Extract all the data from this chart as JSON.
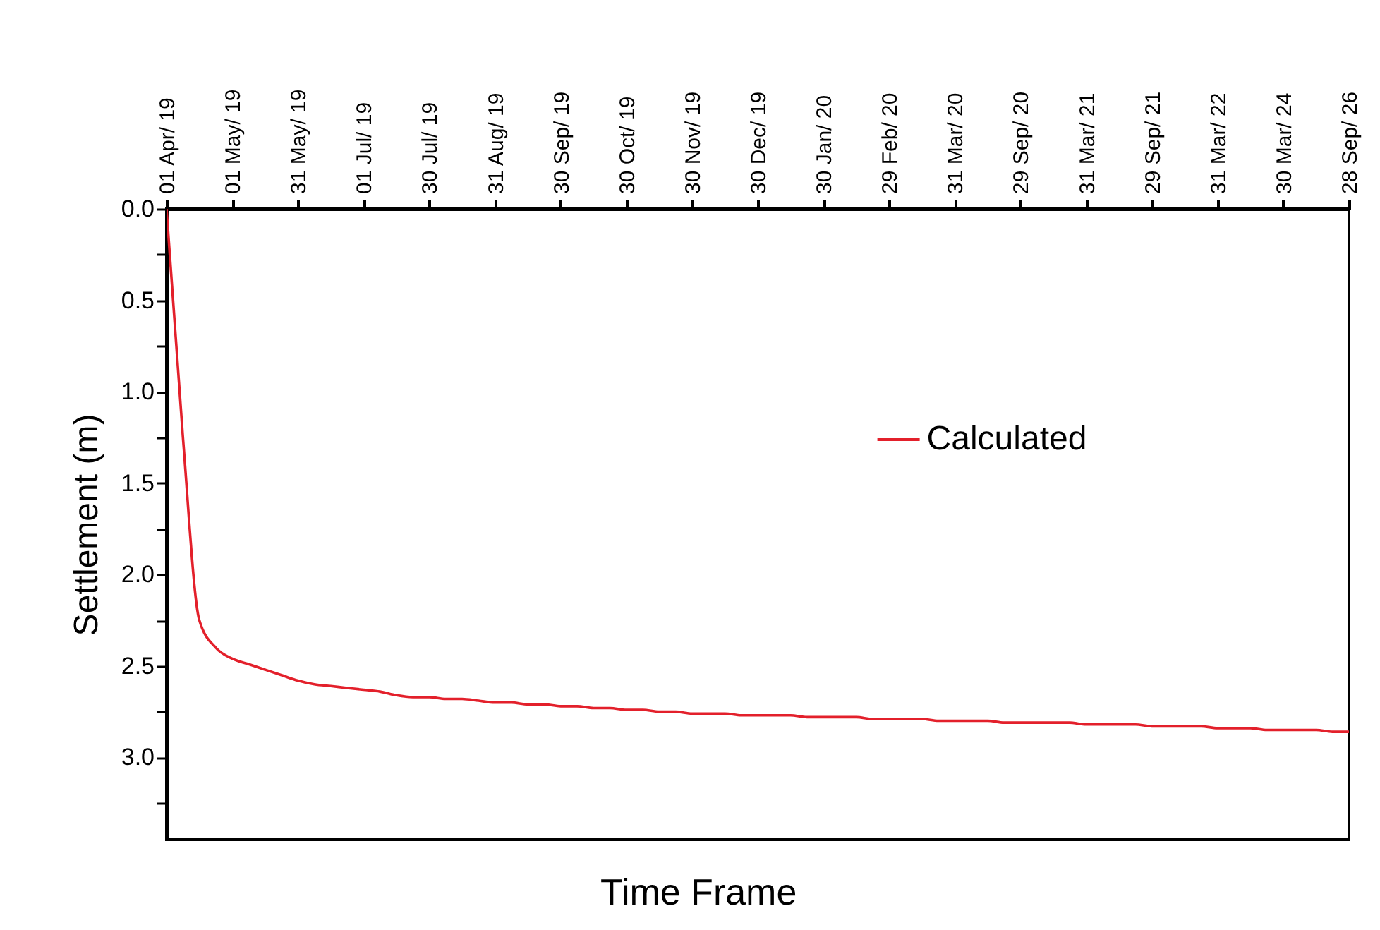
{
  "chart_data": {
    "type": "line",
    "xlabel": "Time Frame",
    "ylabel": "Settlement (m)",
    "categories": [
      "01 Apr/ 19",
      null,
      null,
      null,
      "01 May/ 19",
      null,
      null,
      null,
      "31 May/ 19",
      null,
      null,
      null,
      "01 Jul/ 19",
      null,
      null,
      null,
      "30 Jul/ 19",
      null,
      null,
      null,
      "31 Aug/ 19",
      null,
      null,
      null,
      "30 Sep/ 19",
      null,
      null,
      null,
      "30 Oct/ 19",
      null,
      null,
      null,
      "30 Nov/ 19",
      null,
      null,
      null,
      "30 Dec/ 19",
      null,
      null,
      null,
      "30 Jan/ 20",
      null,
      null,
      null,
      "29 Feb/ 20",
      null,
      null,
      null,
      "31 Mar/ 20",
      null,
      null,
      null,
      "29 Sep/ 20",
      null,
      null,
      null,
      "31 Mar/ 21",
      null,
      null,
      null,
      "29 Sep/ 21",
      null,
      null,
      null,
      "31 Mar/ 22",
      null,
      null,
      null,
      "30 Mar/ 24",
      null,
      null,
      null,
      "28 Sep/ 26"
    ],
    "series": [
      {
        "name": "Calculated",
        "color": "#e3202b",
        "values": [
          0,
          1.25,
          2.25,
          2.4,
          2.46,
          2.49,
          2.52,
          2.55,
          2.58,
          2.6,
          2.61,
          2.62,
          2.63,
          2.64,
          2.66,
          2.67,
          2.67,
          2.68,
          2.68,
          2.69,
          2.7,
          2.7,
          2.71,
          2.71,
          2.72,
          2.72,
          2.73,
          2.73,
          2.74,
          2.74,
          2.75,
          2.75,
          2.76,
          2.76,
          2.76,
          2.77,
          2.77,
          2.77,
          2.77,
          2.78,
          2.78,
          2.78,
          2.78,
          2.79,
          2.79,
          2.79,
          2.79,
          2.8,
          2.8,
          2.8,
          2.8,
          2.81,
          2.81,
          2.81,
          2.81,
          2.81,
          2.82,
          2.82,
          2.82,
          2.82,
          2.83,
          2.83,
          2.83,
          2.83,
          2.84,
          2.84,
          2.84,
          2.85,
          2.85,
          2.85,
          2.85,
          2.86,
          2.86
        ]
      }
    ],
    "ylim": [
      3.45,
      0
    ],
    "yticks": [
      "0.0",
      {
        "value": 0.25,
        "label": null
      },
      {
        "value": 0.5,
        "label": "0.5"
      },
      {
        "value": 0.75,
        "label": null
      },
      {
        "value": 1.0,
        "label": "1.0"
      },
      {
        "value": 1.25,
        "label": null
      },
      {
        "value": 1.5,
        "label": "1.5"
      },
      {
        "value": 1.75,
        "label": null
      },
      {
        "value": 2.0,
        "label": "2.0"
      },
      {
        "value": 2.25,
        "label": null
      },
      {
        "value": 2.5,
        "label": "2.5"
      },
      {
        "value": 2.75,
        "label": null
      },
      {
        "value": 3.0,
        "label": "3.0"
      },
      {
        "value": 3.25,
        "label": null
      }
    ],
    "legend": "right",
    "grid": false,
    "line_style": "solid",
    "marker": "none"
  }
}
